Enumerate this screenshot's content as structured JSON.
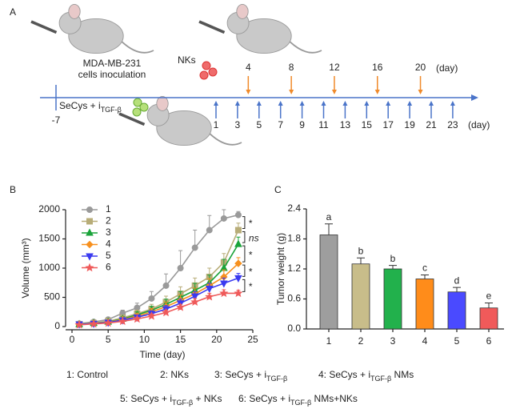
{
  "timeline": {
    "label": "A",
    "start_day": "-7",
    "inoculation": [
      "MDA-MB-231",
      "cells inoculation"
    ],
    "nk_label": "NKs",
    "treatment": [
      "SeCys + i",
      "TGF-β"
    ],
    "injection_days": [
      1,
      3,
      5,
      7,
      9,
      11,
      13,
      15,
      17,
      19,
      21,
      23
    ],
    "nk_days": [
      4,
      8,
      12,
      16,
      20
    ],
    "unit": "(day)"
  },
  "chart_data": [
    {
      "type": "line",
      "label": "B",
      "x_label": "Time (day)",
      "y_label": "Volume (mm³)",
      "xlim": [
        0,
        25
      ],
      "xticks": [
        0,
        5,
        10,
        15,
        20,
        25
      ],
      "ylim": [
        0,
        2000
      ],
      "yticks": [
        0,
        500,
        1000,
        1500,
        2000
      ],
      "x": [
        1,
        3,
        5,
        7,
        9,
        11,
        13,
        15,
        17,
        19,
        21,
        23
      ],
      "series": [
        {
          "name": "1",
          "color": "#9a9a9a",
          "marker": "circle",
          "values": [
            50,
            80,
            120,
            230,
            320,
            480,
            700,
            1000,
            1350,
            1650,
            1850,
            1910
          ],
          "errors": [
            20,
            20,
            30,
            50,
            80,
            120,
            200,
            300,
            300,
            250,
            150,
            60
          ]
        },
        {
          "name": "2",
          "color": "#b8ad78",
          "marker": "square",
          "values": [
            40,
            60,
            90,
            150,
            220,
            300,
            420,
            560,
            700,
            850,
            1100,
            1650
          ],
          "errors": [
            15,
            20,
            25,
            40,
            60,
            80,
            100,
            120,
            130,
            150,
            150,
            120
          ]
        },
        {
          "name": "3",
          "color": "#1aa33a",
          "marker": "triangle",
          "values": [
            40,
            60,
            80,
            130,
            200,
            280,
            380,
            500,
            620,
            750,
            1000,
            1410
          ],
          "errors": [
            15,
            20,
            25,
            40,
            50,
            70,
            90,
            100,
            120,
            130,
            150,
            120
          ]
        },
        {
          "name": "4",
          "color": "#f7901e",
          "marker": "diamond",
          "values": [
            40,
            55,
            75,
            120,
            180,
            250,
            340,
            450,
            560,
            700,
            850,
            1080
          ],
          "errors": [
            15,
            15,
            20,
            30,
            40,
            60,
            80,
            90,
            100,
            120,
            120,
            100
          ]
        },
        {
          "name": "5",
          "color": "#3a3af0",
          "marker": "triangle-down",
          "values": [
            40,
            50,
            70,
            110,
            160,
            220,
            300,
            400,
            520,
            650,
            740,
            830
          ],
          "errors": [
            10,
            15,
            20,
            25,
            35,
            50,
            60,
            70,
            80,
            90,
            90,
            80
          ]
        },
        {
          "name": "6",
          "color": "#ef5a5a",
          "marker": "star",
          "values": [
            30,
            45,
            60,
            90,
            130,
            180,
            240,
            330,
            420,
            510,
            570,
            570
          ],
          "errors": [
            10,
            10,
            15,
            20,
            25,
            35,
            40,
            50,
            60,
            60,
            60,
            50
          ]
        }
      ],
      "annotations": [
        "*",
        "ns",
        "*",
        "*",
        "*"
      ]
    },
    {
      "type": "bar",
      "label": "C",
      "y_label": "Tumor weight (g)",
      "categories": [
        "1",
        "2",
        "3",
        "4",
        "5",
        "6"
      ],
      "values": [
        1.88,
        1.3,
        1.2,
        1.0,
        0.74,
        0.42
      ],
      "errors": [
        0.22,
        0.12,
        0.07,
        0.08,
        0.09,
        0.1
      ],
      "letters": [
        "a",
        "b",
        "b",
        "c",
        "d",
        "e"
      ],
      "colors": [
        "#9e9e9e",
        "#c8bd8a",
        "#22b14c",
        "#ff8c1a",
        "#4a4aff",
        "#f05a5a"
      ],
      "ylim": [
        0,
        2.4
      ],
      "yticks": [
        {
          "value": 0,
          "label": "0.0"
        },
        0.6,
        1.2,
        1.8,
        2.4
      ]
    }
  ],
  "captions": [
    [
      "1: Control"
    ],
    [
      "2: NKs"
    ],
    [
      "3: SeCys + i",
      "TGF-β"
    ],
    [
      "4: SeCys + i",
      "TGF-β",
      " NMs"
    ],
    [
      "5: SeCys + i",
      "TGF-β",
      " + NKs"
    ],
    [
      "6: SeCys + i",
      "TGF-β",
      " NMs+NKs"
    ]
  ]
}
